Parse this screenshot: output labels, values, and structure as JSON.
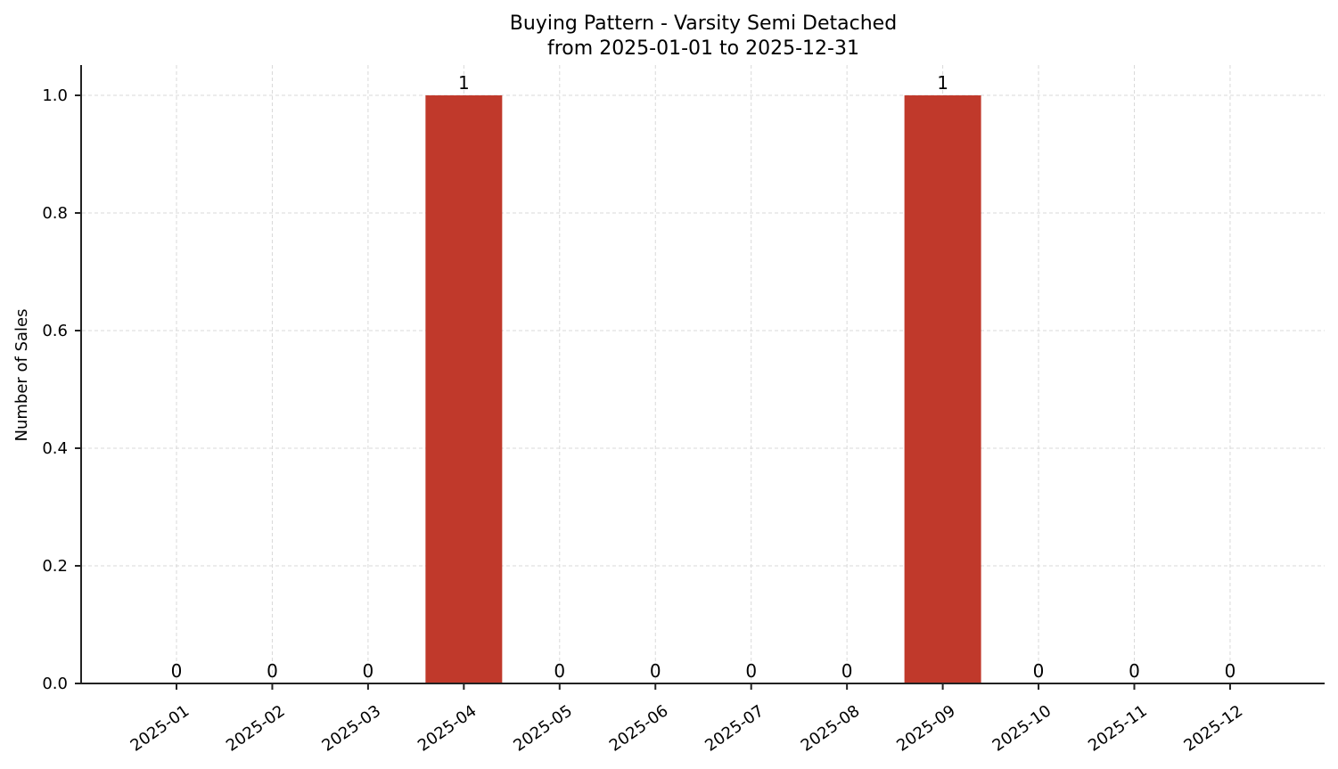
{
  "chart_data": {
    "type": "bar",
    "title": "Buying Pattern - Varsity Semi Detached",
    "subtitle": "from 2025-01-01 to 2025-12-31",
    "xlabel": "",
    "ylabel": "Number of Sales",
    "categories": [
      "2025-01",
      "2025-02",
      "2025-03",
      "2025-04",
      "2025-05",
      "2025-06",
      "2025-07",
      "2025-08",
      "2025-09",
      "2025-10",
      "2025-11",
      "2025-12"
    ],
    "values": [
      0,
      0,
      0,
      1,
      0,
      0,
      0,
      0,
      1,
      0,
      0,
      0
    ],
    "data_labels": [
      "0",
      "0",
      "0",
      "1",
      "0",
      "0",
      "0",
      "0",
      "1",
      "0",
      "0",
      "0"
    ],
    "ylim": [
      0,
      1.05
    ],
    "yticks": [
      0.0,
      0.2,
      0.4,
      0.6,
      0.8,
      1.0
    ],
    "ytick_labels": [
      "0.0",
      "0.2",
      "0.4",
      "0.6",
      "0.8",
      "1.0"
    ],
    "grid": true,
    "legend": null,
    "bar_color": "#c0392b",
    "xtick_rotation": 35
  }
}
